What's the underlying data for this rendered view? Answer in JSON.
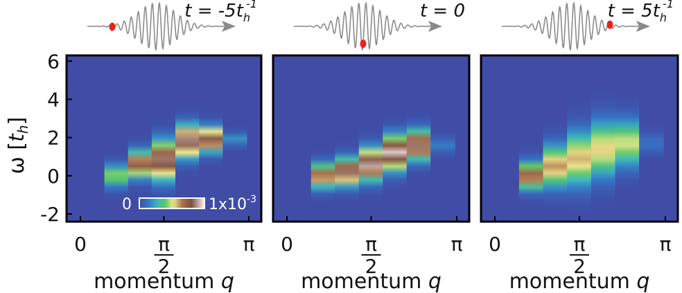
{
  "figure": {
    "ylabel_symbol": "ω",
    "ylabel_unit": "t",
    "ylabel_unit_sub": "h",
    "colorbar": {
      "min_label": "0",
      "max_label": "1x10",
      "max_exponent": "-3"
    }
  },
  "chart_data": [
    {
      "type": "heatmap",
      "time_label": {
        "prefix": "t = -5t",
        "sub": "h",
        "sup": "-1"
      },
      "pulse_marker_position": 0.18,
      "xlabel": "momentum",
      "xlabel_var": "q",
      "ylabel": "ω [t_h]",
      "xlim": [
        0,
        3.1416
      ],
      "ylim": [
        -2.4,
        6.3
      ],
      "xticks": [
        "0",
        "π/2",
        "π"
      ],
      "yticks": [
        "6",
        "4",
        "2",
        "0",
        "-2"
      ],
      "bands": [
        {
          "q": 0.0,
          "center": 0.0,
          "width": 0.0,
          "intensity": 0.0
        },
        {
          "q": 0.5236,
          "center": 0.0,
          "width": 0.9,
          "intensity": 0.45
        },
        {
          "q": 1.0472,
          "center": 0.6,
          "width": 1.1,
          "intensity": 0.75
        },
        {
          "q": 1.5708,
          "center": 0.8,
          "width": 1.6,
          "intensity": 0.85
        },
        {
          "q": 2.0944,
          "center": 1.8,
          "width": 1.3,
          "intensity": 0.9
        },
        {
          "q": 2.618,
          "center": 1.9,
          "width": 1.0,
          "intensity": 0.82
        },
        {
          "q": 3.1416,
          "center": 1.9,
          "width": 0.5,
          "intensity": 0.2
        }
      ]
    },
    {
      "type": "heatmap",
      "time_label": {
        "prefix": "t = 0",
        "sub": "",
        "sup": ""
      },
      "pulse_marker_position": 0.5,
      "xlabel": "momentum",
      "xlabel_var": "q",
      "ylabel": "ω [t_h]",
      "xlim": [
        0,
        3.1416
      ],
      "ylim": [
        -2.4,
        6.3
      ],
      "xticks": [
        "0",
        "π/2",
        "π"
      ],
      "yticks": [
        "6",
        "4",
        "2",
        "0",
        "-2"
      ],
      "bands": [
        {
          "q": 0.0,
          "center": 0.0,
          "width": 0.0,
          "intensity": 0.0
        },
        {
          "q": 0.5236,
          "center": 0.0,
          "width": 1.0,
          "intensity": 0.7
        },
        {
          "q": 1.0472,
          "center": 0.2,
          "width": 1.1,
          "intensity": 0.85
        },
        {
          "q": 1.5708,
          "center": 0.6,
          "width": 1.3,
          "intensity": 0.92
        },
        {
          "q": 2.0944,
          "center": 1.2,
          "width": 1.4,
          "intensity": 0.95
        },
        {
          "q": 2.618,
          "center": 1.6,
          "width": 1.2,
          "intensity": 0.85
        },
        {
          "q": 3.1416,
          "center": 1.6,
          "width": 0.6,
          "intensity": 0.15
        }
      ]
    },
    {
      "type": "heatmap",
      "time_label": {
        "prefix": "t = 5t",
        "sub": "h",
        "sup": "-1"
      },
      "pulse_marker_position": 0.78,
      "xlabel": "momentum",
      "xlabel_var": "q",
      "ylabel": "ω [t_h]",
      "xlim": [
        0,
        3.1416
      ],
      "ylim": [
        -2.4,
        6.3
      ],
      "xticks": [
        "0",
        "π/2",
        "π"
      ],
      "yticks": [
        "6",
        "4",
        "2",
        "0",
        "-2"
      ],
      "bands": [
        {
          "q": 0.0,
          "center": 0.0,
          "width": 0.0,
          "intensity": 0.0
        },
        {
          "q": 0.5236,
          "center": 0.0,
          "width": 1.1,
          "intensity": 0.72
        },
        {
          "q": 1.0472,
          "center": 0.5,
          "width": 1.7,
          "intensity": 0.62
        },
        {
          "q": 1.5708,
          "center": 0.9,
          "width": 2.2,
          "intensity": 0.58
        },
        {
          "q": 2.0944,
          "center": 1.4,
          "width": 2.3,
          "intensity": 0.55
        },
        {
          "q": 2.618,
          "center": 1.7,
          "width": 1.9,
          "intensity": 0.5
        },
        {
          "q": 3.1416,
          "center": 1.7,
          "width": 0.8,
          "intensity": 0.12
        }
      ]
    }
  ]
}
